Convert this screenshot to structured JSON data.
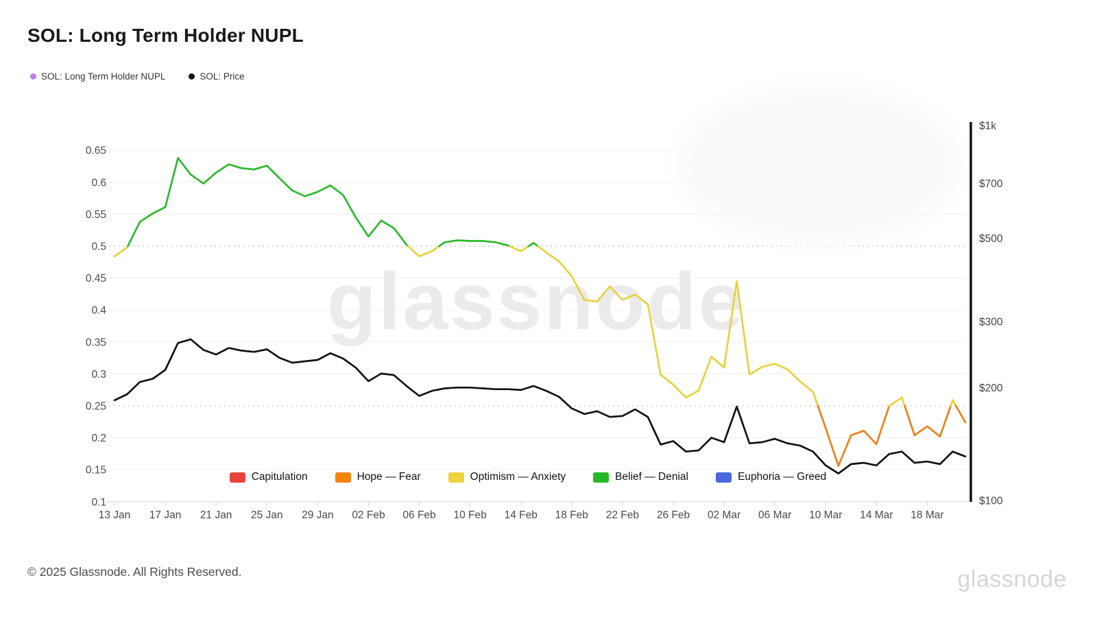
{
  "header": {
    "title": "SOL: Long Term Holder NUPL"
  },
  "top_legend": [
    {
      "label": "SOL: Long Term Holder NUPL",
      "color": "#c17ff0"
    },
    {
      "label": "SOL: Price",
      "color": "#111111"
    }
  ],
  "chart_data": {
    "type": "line",
    "title": "SOL: Long Term Holder NUPL",
    "x": [
      "13 Jan",
      "14 Jan",
      "15 Jan",
      "16 Jan",
      "17 Jan",
      "18 Jan",
      "19 Jan",
      "20 Jan",
      "21 Jan",
      "22 Jan",
      "23 Jan",
      "24 Jan",
      "25 Jan",
      "26 Jan",
      "27 Jan",
      "28 Jan",
      "29 Jan",
      "30 Jan",
      "31 Jan",
      "01 Feb",
      "02 Feb",
      "03 Feb",
      "04 Feb",
      "05 Feb",
      "06 Feb",
      "07 Feb",
      "08 Feb",
      "09 Feb",
      "10 Feb",
      "11 Feb",
      "12 Feb",
      "13 Feb",
      "14 Feb",
      "15 Feb",
      "16 Feb",
      "17 Feb",
      "18 Feb",
      "19 Feb",
      "20 Feb",
      "21 Feb",
      "22 Feb",
      "23 Feb",
      "24 Feb",
      "25 Feb",
      "26 Feb",
      "27 Feb",
      "28 Feb",
      "01 Mar",
      "02 Mar",
      "03 Mar",
      "04 Mar",
      "05 Mar",
      "06 Mar",
      "07 Mar",
      "08 Mar",
      "09 Mar",
      "10 Mar",
      "11 Mar",
      "12 Mar",
      "13 Mar",
      "14 Mar",
      "15 Mar",
      "16 Mar",
      "17 Mar",
      "18 Mar",
      "19 Mar",
      "20 Mar",
      "21 Mar"
    ],
    "x_tick_labels": [
      "13 Jan",
      "17 Jan",
      "21 Jan",
      "25 Jan",
      "29 Jan",
      "02 Feb",
      "06 Feb",
      "10 Feb",
      "14 Feb",
      "18 Feb",
      "22 Feb",
      "26 Feb",
      "02 Mar",
      "06 Mar",
      "10 Mar",
      "14 Mar",
      "18 Mar"
    ],
    "series": [
      {
        "name": "SOL: Long Term Holder NUPL",
        "axis": "left",
        "values": [
          0.484,
          0.498,
          0.538,
          0.551,
          0.561,
          0.638,
          0.612,
          0.598,
          0.615,
          0.628,
          0.622,
          0.62,
          0.626,
          0.606,
          0.587,
          0.578,
          0.585,
          0.595,
          0.58,
          0.545,
          0.515,
          0.54,
          0.528,
          0.502,
          0.484,
          0.492,
          0.506,
          0.509,
          0.508,
          0.508,
          0.506,
          0.501,
          0.492,
          0.505,
          0.49,
          0.476,
          0.453,
          0.416,
          0.413,
          0.437,
          0.416,
          0.424,
          0.409,
          0.299,
          0.283,
          0.263,
          0.274,
          0.327,
          0.31,
          0.445,
          0.299,
          0.311,
          0.316,
          0.307,
          0.288,
          0.272,
          0.215,
          0.156,
          0.204,
          0.211,
          0.19,
          0.25,
          0.263,
          0.204,
          0.218,
          0.202,
          0.259,
          0.224
        ]
      },
      {
        "name": "SOL: Price",
        "axis": "right",
        "color": "#111111",
        "values": [
          185,
          192,
          207,
          211,
          223,
          263,
          269,
          252,
          245,
          255,
          251,
          249,
          253,
          240,
          233,
          235,
          237,
          247,
          239,
          226,
          208,
          218,
          216,
          202,
          190,
          196,
          199,
          200,
          200,
          199,
          198,
          198,
          197,
          202,
          196,
          189,
          176,
          170,
          173,
          167,
          168,
          175,
          167,
          141,
          144,
          135,
          136,
          147,
          143,
          178,
          142,
          143,
          146,
          142,
          140,
          135,
          124,
          118,
          125,
          126,
          124,
          133,
          135,
          126,
          127,
          125,
          135,
          131
        ]
      }
    ],
    "left_axis": {
      "range": [
        0.1,
        0.65
      ],
      "ticks": [
        {
          "v": 0.65,
          "label": "0.65"
        },
        {
          "v": 0.6,
          "label": "0.6"
        },
        {
          "v": 0.55,
          "label": "0.55"
        },
        {
          "v": 0.5,
          "label": "0.5"
        },
        {
          "v": 0.45,
          "label": "0.45"
        },
        {
          "v": 0.4,
          "label": "0.4"
        },
        {
          "v": 0.35,
          "label": "0.35"
        },
        {
          "v": 0.3,
          "label": "0.3"
        },
        {
          "v": 0.25,
          "label": "0.25"
        },
        {
          "v": 0.2,
          "label": "0.2"
        },
        {
          "v": 0.15,
          "label": "0.15"
        },
        {
          "v": 0.1,
          "label": "0.1"
        }
      ],
      "dotted_at": [
        0.5,
        0.25
      ]
    },
    "right_axis": {
      "scale": "log",
      "range": [
        100,
        1000
      ],
      "ticks": [
        {
          "v": 1000,
          "label": "$1k"
        },
        {
          "v": 700,
          "label": "$700"
        },
        {
          "v": 500,
          "label": "$500"
        },
        {
          "v": 300,
          "label": "$300"
        },
        {
          "v": 200,
          "label": "$200"
        },
        {
          "v": 100,
          "label": "$100"
        }
      ]
    },
    "nupl_bands": {
      "thresholds": [
        0.25,
        0.5
      ],
      "colors_by_band": [
        "#ef8018",
        "#e7d23c",
        "#2db92d"
      ]
    },
    "bands_legend": [
      {
        "label": "Capitulation",
        "color": "#e8433c"
      },
      {
        "label": "Hope — Fear",
        "color": "#f5840c"
      },
      {
        "label": "Optimism — Anxiety",
        "color": "#edd33f"
      },
      {
        "label": "Belief — Denial",
        "color": "#26b926"
      },
      {
        "label": "Euphoria — Greed",
        "color": "#4a68dd"
      }
    ],
    "grid": "horizontal-only",
    "legend_position": "bottom-inside"
  },
  "branding": {
    "watermark": "glassnode",
    "footer_logo": "glassnode"
  },
  "footer": {
    "copyright": "© 2025 Glassnode. All Rights Reserved."
  }
}
